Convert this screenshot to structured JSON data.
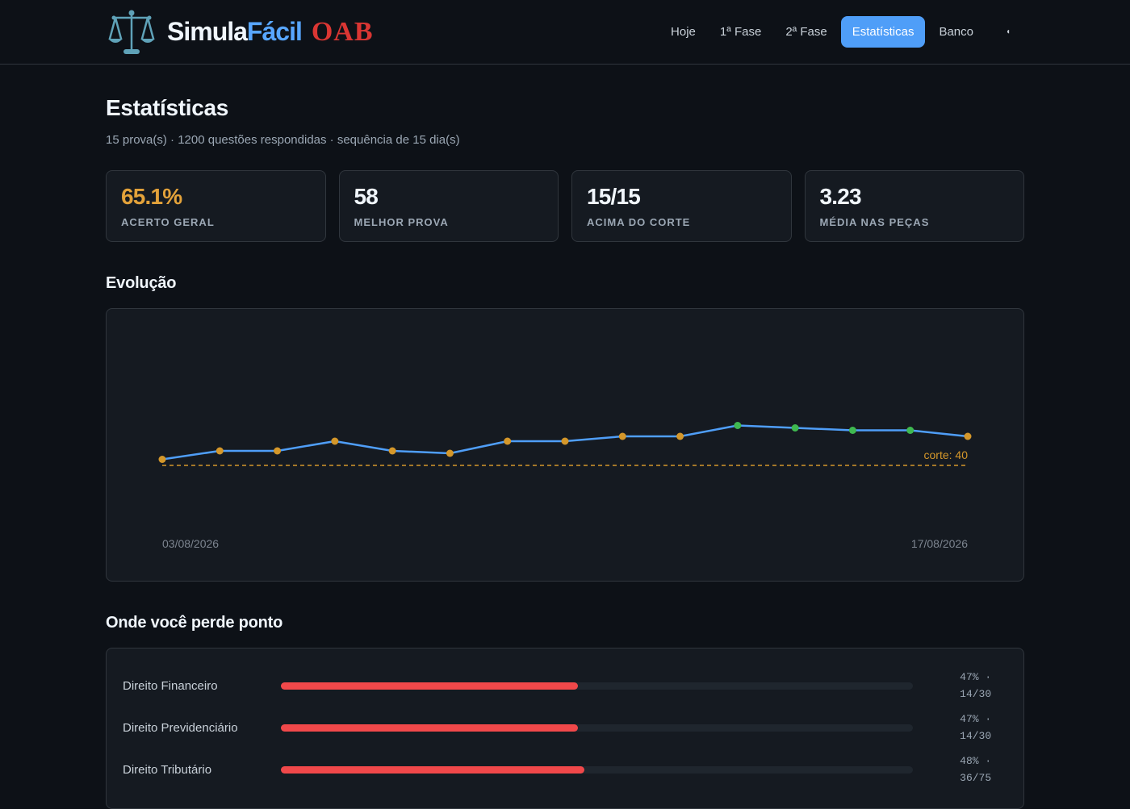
{
  "brand": {
    "simula": "Simula",
    "facil": "Fácil",
    "oab": "OAB",
    "logo_icon": "scales-of-justice-icon"
  },
  "nav": {
    "items": [
      {
        "label": "Hoje",
        "active": false
      },
      {
        "label": "1ª Fase",
        "active": false
      },
      {
        "label": "2ª Fase",
        "active": false
      },
      {
        "label": "Estatísticas",
        "active": true
      },
      {
        "label": "Banco",
        "active": false
      }
    ],
    "toggle_icon": "theme-toggle-icon"
  },
  "page": {
    "title": "Estatísticas",
    "subtitle": "15 prova(s) · 1200 questões respondidas · sequência de 15 dia(s)"
  },
  "stats": [
    {
      "value": "65.1%",
      "label": "ACERTO GERAL",
      "accent": true
    },
    {
      "value": "58",
      "label": "MELHOR PROVA",
      "accent": false
    },
    {
      "value": "15/15",
      "label": "ACIMA DO CORTE",
      "accent": false
    },
    {
      "value": "3.23",
      "label": "MÉDIA NAS PEÇAS",
      "accent": false
    }
  ],
  "evolution": {
    "title": "Evolução",
    "cutoff_label": "corte: 40",
    "x_start_label": "03/08/2026",
    "x_end_label": "17/08/2026",
    "colors": {
      "line": "#4f9ef8",
      "below": "#d4972a",
      "above": "#3fb950",
      "cutoff": "#d4972a"
    }
  },
  "chart_data": {
    "type": "line",
    "x": [
      "03/08/2026",
      "04/08/2026",
      "05/08/2026",
      "06/08/2026",
      "07/08/2026",
      "08/08/2026",
      "09/08/2026",
      "10/08/2026",
      "11/08/2026",
      "12/08/2026",
      "13/08/2026",
      "14/08/2026",
      "15/08/2026",
      "16/08/2026",
      "17/08/2026"
    ],
    "series": [
      {
        "values": [
          42.5,
          46,
          46,
          50,
          46,
          45,
          50,
          50,
          52,
          52,
          56.5,
          55.5,
          54.5,
          54.5,
          52
        ]
      }
    ],
    "cutoff": 40,
    "ylim": [
      0,
      100
    ],
    "xlabel": "",
    "ylabel": "",
    "grid": false
  },
  "losses": {
    "title": "Onde você perde ponto",
    "items": [
      {
        "name": "Direito Financeiro",
        "pct": 47,
        "value": "47% ·\n14/30"
      },
      {
        "name": "Direito Previdenciário",
        "pct": 47,
        "value": "47% ·\n14/30"
      },
      {
        "name": "Direito Tributário",
        "pct": 48,
        "value": "48% ·\n36/75"
      }
    ]
  }
}
